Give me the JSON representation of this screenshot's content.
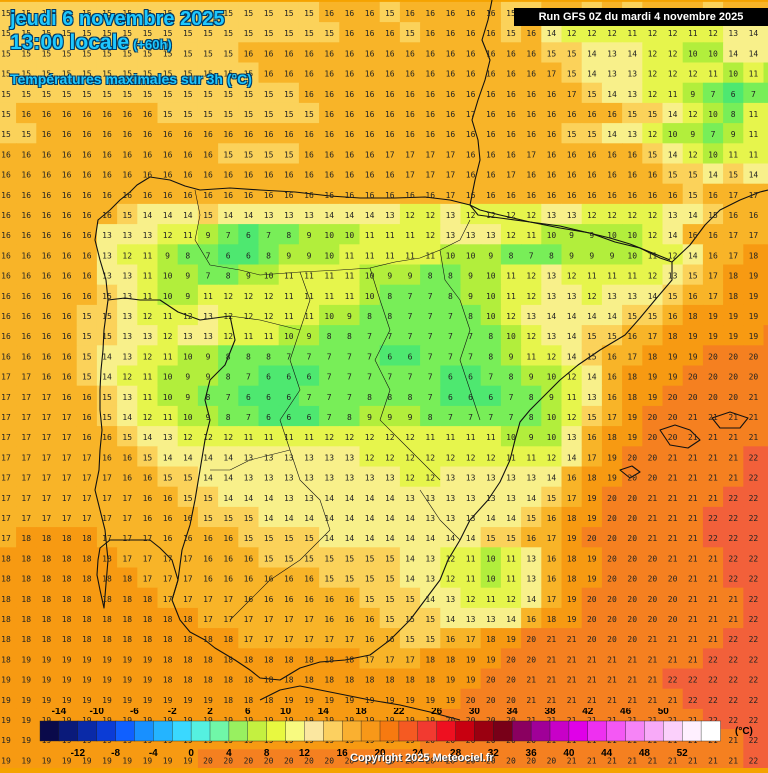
{
  "header": {
    "date_line": "jeudi 6 novembre 2025",
    "time_line": "13:00 locale",
    "lead_time": "(+60h)",
    "product": "Températures maximales sur 3h (°C)",
    "run_info": "Run GFS 0Z du mardi 4 novembre 2025"
  },
  "footer": {
    "copyright": "Copyright 2025 Meteociel.fr",
    "unit": "(°C)"
  },
  "legend": {
    "top_labels": [
      "-14",
      "-10",
      "-6",
      "-2",
      "2",
      "6",
      "10",
      "14",
      "18",
      "22",
      "26",
      "30",
      "34",
      "38",
      "42",
      "46",
      "50"
    ],
    "bottom_labels": [
      "-12",
      "-8",
      "-4",
      "0",
      "4",
      "8",
      "12",
      "16",
      "20",
      "24",
      "28",
      "32",
      "36",
      "40",
      "44",
      "48",
      "52"
    ],
    "colors": [
      "#0a0a4a",
      "#0a1a7a",
      "#0a2aa8",
      "#0b3cd6",
      "#1060ff",
      "#1890ff",
      "#24b4ff",
      "#3ad8ff",
      "#55f0e0",
      "#70f7a8",
      "#98f060",
      "#c4f040",
      "#e8f840",
      "#f8fa80",
      "#fbe7a0",
      "#fcd060",
      "#fab030",
      "#f89818",
      "#f77a10",
      "#f55a22",
      "#f23a30",
      "#ee1020",
      "#c80010",
      "#9a0010",
      "#780018",
      "#8a0060",
      "#a00098",
      "#c800c8",
      "#e000e8",
      "#ee30f0",
      "#f458f4",
      "#f684f6",
      "#f8aaf8",
      "#fbd0fb",
      "#fff0ff",
      "#ffffff"
    ]
  },
  "temperature_rows": [
    "15 15 15 15 15 15 15 15 15 15 15 15 15 15 15 15 16 16 16 15 16 16 16 16 16 15 15 16 16 15 16 15 16 16 16 15 16 17 17",
    "15 15 15 15 15 15 15 15 15 15 15 15 15 15 15 15 15 16 16 16 15 16 16 16 16 15 16 14 12 12 12 11 12 12 11 12 13 14 14",
    "15 15 15 15 15 15 15 15 15 15 15 15 16 16 16 16 16 16 16 16 16 16 16 16 16 16 16 15 15 14 13 14 12 12 10 10 14 14 13",
    "15 15 15 15 15 15 15 15 15 15 15 15 15 16 16 16 16 16 16 16 16 16 16 16 16 16 16 17 15 14 13 13 12 12 12 11 10 11 10",
    "15 15 15 15 15 15 15 15 15 15 15 15 15 15 15 16 16 16 16 16 16 16 16 16 16 16 16 16 17 15 14 13 12 11 9 7 6 7 8",
    "15 16 16 16 16 16 16 16 15 15 15 15 15 15 15 15 16 16 16 16 16 16 16 17 16 16 16 16 16 16 16 15 15 14 12 10 8 11 12",
    "15 15 16 16 16 16 16 16 16 16 16 16 16 16 16 16 16 16 16 16 16 16 16 16 16 16 16 16 15 15 14 13 12 10 9 7 9 11 12",
    "16 16 16 16 16 16 16 16 16 16 16 15 15 15 15 16 16 16 16 17 17 17 17 16 16 16 17 16 16 16 16 16 15 14 12 10 11 11 12",
    "16 16 16 16 16 16 16 16 16 16 16 16 16 16 16 16 16 16 16 16 17 17 17 16 16 17 16 16 16 16 16 16 16 15 15 14 15 14 14",
    "16 16 16 16 16 16 16 16 16 16 16 16 16 16 16 16 16 16 16 16 16 16 17 16 16 16 16 16 16 16 16 16 16 16 15 16 17 17 17",
    "16 16 16 16 16 16 15 14 14 14 15 14 14 13 13 13 14 14 14 13 12 12 13 12 12 12 12 13 13 12 12 12 12 13 14 15 16 16 16",
    "16 16 16 16 16 13 13 13 12 11 9 7 6 7 8 9 10 10 11 11 11 12 13 13 13 12 11 10 9 9 10 10 12 14 16 16 17 17 17",
    "16 16 16 16 16 13 12 11 9 8 7 6 6 8 9 9 10 11 11 11 11 11 10 10 9 8 7 8 9 9 9 10 11 12 14 16 17 18 18",
    "16 16 16 16 16 13 13 11 10 9 7 8 9 10 11 11 11 11 10 9 9 8 8 9 10 11 12 13 12 11 11 11 12 13 15 17 18 19 19",
    "16 16 16 16 16 15 13 11 10 9 11 12 12 12 11 11 11 11 10 8 7 7 8 9 10 11 12 13 13 12 13 13 14 15 16 17 18 19 19",
    "16 16 16 16 15 15 13 12 11 12 13 12 12 12 11 11 10 9 8 8 7 7 7 8 10 12 13 14 14 14 14 15 15 16 18 19 19 19 19",
    "16 16 16 16 15 15 13 13 12 13 13 12 11 11 10 9 8 8 7 7 7 7 7 7 8 10 12 13 14 15 15 16 17 18 19 19 19 19 20",
    "16 16 16 16 15 14 13 12 11 10 9 8 8 8 7 7 7 7 7 6 6 7 7 7 8 9 11 12 14 15 16 17 18 19 19 20 20 20 20",
    "17 17 16 16 15 14 12 11 10 9 9 8 7 6 6 6 7 7 7 7 7 7 6 6 7 8 9 10 12 14 16 18 19 19 20 20 20 20 20",
    "17 17 17 16 16 15 13 11 10 9 8 7 6 6 6 7 7 7 8 8 8 7 6 6 6 7 8 9 11 13 16 18 19 20 20 20 20 21 21",
    "17 17 17 17 16 15 14 12 11 10 9 8 7 6 6 6 7 8 9 9 9 8 7 7 7 7 8 10 12 15 17 19 20 20 21 21 21 21 21",
    "17 17 17 17 16 16 15 14 13 12 12 12 11 11 11 11 12 12 12 12 12 11 11 11 11 10 9 10 13 16 18 19 20 20 21 21 21 21 21",
    "17 17 17 17 17 16 16 15 14 14 14 14 13 13 13 13 13 13 12 12 12 12 12 12 12 11 11 12 14 17 19 20 20 21 21 21 21 22 22",
    "17 17 17 17 17 17 16 16 15 15 14 14 13 13 13 13 13 13 13 13 12 12 13 13 13 13 13 14 16 18 19 20 20 21 21 21 21 22 22",
    "17 17 17 17 17 17 17 16 16 15 15 14 14 14 13 13 14 14 14 14 13 13 13 13 13 13 14 15 17 19 20 20 21 21 21 21 22 22 22",
    "17 17 17 17 17 17 17 16 16 16 15 15 15 14 14 14 14 14 14 14 14 13 13 13 14 14 15 16 18 19 20 20 21 21 21 22 22 22 22",
    "17 18 18 18 18 17 17 17 16 16 16 16 15 15 15 15 14 14 14 14 14 14 14 14 15 15 16 17 19 20 20 20 21 21 21 22 22 22 22",
    "18 18 18 18 18 18 17 17 17 17 16 16 16 15 15 15 15 15 15 15 14 13 12 11 10 11 13 16 18 19 20 20 20 21 21 21 22 22 22",
    "18 18 18 18 18 18 18 17 17 17 16 16 16 16 16 16 15 15 15 15 14 13 12 11 10 11 13 16 18 19 20 20 20 20 21 21 22 22 22",
    "18 18 18 18 18 18 18 18 17 17 17 17 16 16 16 16 16 16 15 15 15 14 13 12 11 12 14 17 19 20 20 20 20 20 21 21 21 22 22",
    "18 18 18 18 18 18 18 18 18 18 17 17 17 17 17 17 16 16 16 15 15 15 14 13 13 14 16 18 19 20 20 20 20 20 21 21 21 22 22",
    "18 18 18 18 18 18 18 18 18 18 18 18 17 17 17 17 17 17 16 16 15 15 16 17 18 19 20 21 21 20 20 20 21 21 21 21 22 22 23",
    "18 19 19 19 19 19 19 19 18 18 18 18 18 18 18 18 18 18 17 17 17 18 18 19 19 20 20 21 21 21 21 21 21 21 21 22 22 22 22",
    "19 19 19 19 19 19 19 19 18 18 18 18 18 18 18 18 18 18 18 18 18 18 19 19 20 20 21 21 21 21 21 21 21 22 22 22 22 22 22",
    "19 19 19 19 19 19 19 19 19 19 19 18 18 18 19 19 19 19 19 19 19 19 19 20 20 20 21 21 21 21 21 21 21 21 22 22 22 22 22",
    "19 19 19 19 19 19 19 19 19 19 19 19 19 19 19 19 19 19 19 19 19 19 20 20 20 20 21 21 21 21 21 21 21 21 21 22 22 22 22",
    "19 19 19 19 19 19 19 19 19 19 19 19 19 19 19 19 19 19 19 19 19 20 20 20 20 20 20 21 21 21 21 21 21 21 21 21 21 22 22",
    "19 19 19 19 19 19 19 19 19 19 20 20 20 20 20 20 20 20 20 20 20 20 20 20 20 20 20 20 21 21 21 21 21 21 21 21 21 22 22"
  ]
}
